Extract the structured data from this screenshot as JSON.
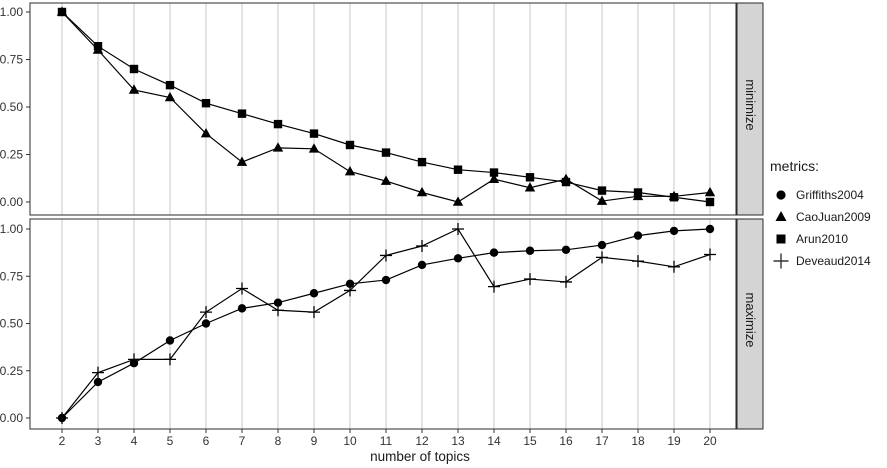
{
  "chart_data": {
    "type": "line",
    "title": "",
    "xlabel": "number of topics",
    "x": [
      2,
      3,
      4,
      5,
      6,
      7,
      8,
      9,
      10,
      11,
      12,
      13,
      14,
      15,
      16,
      17,
      18,
      19,
      20
    ],
    "ylim": [
      0,
      1
    ],
    "y_tick_labels": [
      "1.00",
      "0.75",
      "0.50",
      "0.25",
      "0.00"
    ],
    "y_tick_values": [
      1.0,
      0.75,
      0.5,
      0.25,
      0.0
    ],
    "grid": "vertical-major-only",
    "legend_position": "right",
    "facets": [
      {
        "label": "minimize",
        "series": [
          {
            "name": "CaoJuan2009",
            "marker": "triangle",
            "color": "#000000",
            "values": [
              1.0,
              0.8,
              0.59,
              0.55,
              0.36,
              0.21,
              0.285,
              0.28,
              0.16,
              0.11,
              0.05,
              0.0,
              0.12,
              0.075,
              0.12,
              0.005,
              0.03,
              0.03,
              0.05
            ]
          },
          {
            "name": "Arun2010",
            "marker": "square",
            "color": "#000000",
            "values": [
              1.0,
              0.82,
              0.7,
              0.615,
              0.52,
              0.465,
              0.41,
              0.36,
              0.3,
              0.26,
              0.21,
              0.17,
              0.155,
              0.13,
              0.105,
              0.06,
              0.05,
              0.025,
              0.0
            ]
          }
        ]
      },
      {
        "label": "maximize",
        "series": [
          {
            "name": "Griffiths2004",
            "marker": "circle",
            "color": "#000000",
            "values": [
              0.0,
              0.19,
              0.29,
              0.41,
              0.5,
              0.58,
              0.61,
              0.66,
              0.71,
              0.73,
              0.81,
              0.845,
              0.875,
              0.885,
              0.89,
              0.915,
              0.965,
              0.99,
              1.0
            ]
          },
          {
            "name": "Deveaud2014",
            "marker": "plus",
            "color": "#000000",
            "values": [
              0.0,
              0.24,
              0.31,
              0.31,
              0.56,
              0.685,
              0.57,
              0.56,
              0.675,
              0.86,
              0.91,
              1.0,
              0.695,
              0.735,
              0.72,
              0.85,
              0.83,
              0.8,
              0.865
            ]
          }
        ]
      }
    ]
  },
  "legend": {
    "title": "metrics:",
    "items": [
      {
        "symbol": "circle",
        "label": "Griffiths2004"
      },
      {
        "symbol": "triangle",
        "label": "CaoJuan2009"
      },
      {
        "symbol": "square",
        "label": "Arun2010"
      },
      {
        "symbol": "plus",
        "label": "Deveaud2014"
      }
    ]
  },
  "colors": {
    "series": "#000000",
    "gridline": "#c9c9c9",
    "panel_border": "#2b2b2b",
    "strip_fill": "#d4d4d4",
    "strip_text": "#1a1a1a",
    "axis_text": "#333333",
    "axis_title": "#1a1a1a",
    "background": "#ffffff"
  }
}
